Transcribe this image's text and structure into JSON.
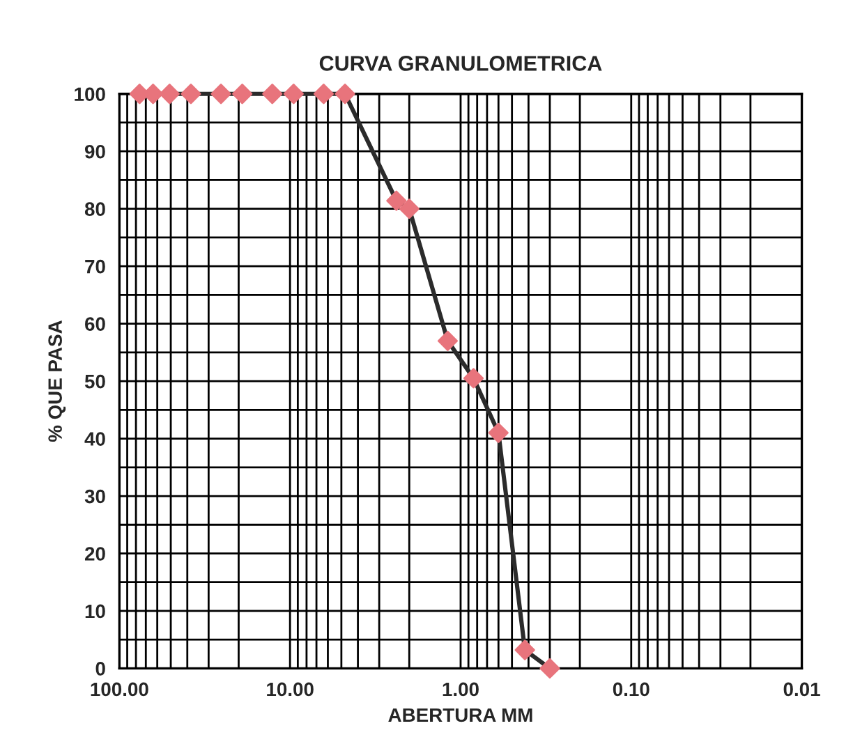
{
  "chart_data": {
    "type": "line",
    "title": "CURVA GRANULOMETRICA",
    "xlabel": "ABERTURA MM",
    "ylabel": "% QUE PASA",
    "x": [
      76.2,
      63.5,
      50.8,
      38.1,
      25.4,
      19.05,
      12.7,
      9.525,
      6.35,
      4.76,
      2.38,
      2.0,
      1.19,
      0.84,
      0.6,
      0.42,
      0.3
    ],
    "series": [
      {
        "color": "#2b2b2b",
        "colors": [
          "#e8747c",
          "#e8747c",
          "#e8747c",
          "#e8747c",
          "#e8747c",
          "#e8747c",
          "#e8747c",
          "#e8747c",
          "#e8747c",
          "#e8747c",
          "#e8747c",
          "#e8747c",
          "#e8747c",
          "#e8747c",
          "#e8747c",
          "#e8747c",
          "#e8747c"
        ],
        "values": [
          100,
          100,
          100,
          100,
          100,
          100,
          100,
          100,
          100,
          100,
          81.4,
          80,
          57,
          50.5,
          41,
          3.2,
          0
        ]
      }
    ],
    "log": "x",
    "xlim": [
      100,
      0.01
    ],
    "xticks": [
      {
        "value": 100,
        "label": "100.00"
      },
      {
        "value": 10,
        "label": "10.00"
      },
      {
        "value": 1,
        "label": "1.00"
      },
      {
        "value": 0.1,
        "label": "0.10"
      },
      {
        "value": 0.01,
        "label": "0.01"
      }
    ],
    "ylim": [
      0,
      100
    ],
    "yticks": [
      0,
      {
        "value": 5,
        "label": null
      },
      10,
      {
        "value": 15,
        "label": null
      },
      20,
      {
        "value": 25,
        "label": null
      },
      30,
      {
        "value": 35,
        "label": null
      },
      40,
      {
        "value": 45,
        "label": null
      },
      50,
      {
        "value": 55,
        "label": null
      },
      60,
      {
        "value": 65,
        "label": null
      },
      70,
      {
        "value": 75,
        "label": null
      },
      80,
      {
        "value": 85,
        "label": null
      },
      90,
      {
        "value": 95,
        "label": null
      },
      100
    ],
    "grid": true,
    "marker": "diamond",
    "line_style": "solid",
    "legend": false
  }
}
